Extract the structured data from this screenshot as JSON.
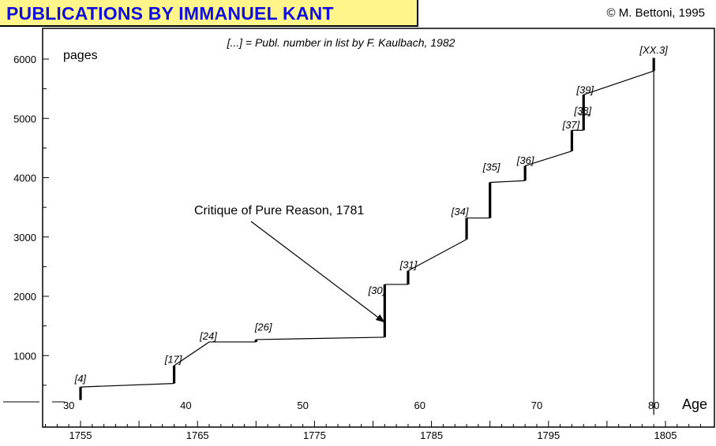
{
  "title": "PUBLICATIONS BY IMMANUEL KANT",
  "copyright": "© M. Bettoni, 1995",
  "chart_data": {
    "type": "line",
    "subtitle": "[...] = Publ. number in list by F. Kaulbach, 1982",
    "ylabel": "pages",
    "xlabel_age": "Age",
    "ylim": [
      0,
      6300
    ],
    "xlim": [
      1750.5,
      1808.5
    ],
    "yticks": [
      1000,
      2000,
      3000,
      4000,
      5000,
      6000
    ],
    "year_ticks": [
      1755,
      1765,
      1775,
      1785,
      1795,
      1805
    ],
    "age_ticks": [
      {
        "year": 1754,
        "age": "30"
      },
      {
        "year": 1764,
        "age": "40"
      },
      {
        "year": 1774,
        "age": "50"
      },
      {
        "year": 1784,
        "age": "60"
      },
      {
        "year": 1794,
        "age": "70"
      },
      {
        "year": 1804,
        "age": "80"
      }
    ],
    "series": [
      {
        "points": [
          [
            1755,
            250
          ],
          [
            1755,
            470
          ],
          [
            1763,
            530
          ],
          [
            1763,
            830
          ],
          [
            1766,
            1230
          ],
          [
            1770,
            1230
          ],
          [
            1770,
            1270
          ],
          [
            1781,
            1310
          ],
          [
            1781,
            2200
          ],
          [
            1783,
            2200
          ],
          [
            1783,
            2430
          ],
          [
            1788,
            2960
          ],
          [
            1788,
            3320
          ],
          [
            1790,
            3320
          ],
          [
            1790,
            3920
          ],
          [
            1793,
            3950
          ],
          [
            1793,
            4200
          ],
          [
            1797,
            4450
          ],
          [
            1797,
            4800
          ],
          [
            1798,
            4800
          ],
          [
            1798,
            5400
          ],
          [
            1804,
            5800
          ],
          [
            1804,
            6020
          ],
          [
            1804,
            0
          ]
        ]
      }
    ],
    "annotations": [
      {
        "label": "[4]",
        "year": 1754.5,
        "pages": 550
      },
      {
        "label": "[17]",
        "year": 1762.2,
        "pages": 880
      },
      {
        "label": "[24]",
        "year": 1765.2,
        "pages": 1270
      },
      {
        "label": "[26]",
        "year": 1769.9,
        "pages": 1420
      },
      {
        "label": "[30]",
        "year": 1779.6,
        "pages": 2040
      },
      {
        "label": "[31]",
        "year": 1782.3,
        "pages": 2470
      },
      {
        "label": "[34]",
        "year": 1786.7,
        "pages": 3370
      },
      {
        "label": "[35]",
        "year": 1789.4,
        "pages": 4120
      },
      {
        "label": "[36]",
        "year": 1792.3,
        "pages": 4230
      },
      {
        "label": "[37]",
        "year": 1796.2,
        "pages": 4830
      },
      {
        "label": "[38]",
        "year": 1797.2,
        "pages": 5070
      },
      {
        "label": "[39]",
        "year": 1797.4,
        "pages": 5420
      },
      {
        "label": "[XX.3]",
        "year": 1802.8,
        "pages": 6090
      }
    ],
    "callout": {
      "label": "Critique of Pure Reason, 1781",
      "year": 1781,
      "pages": 1600
    }
  }
}
